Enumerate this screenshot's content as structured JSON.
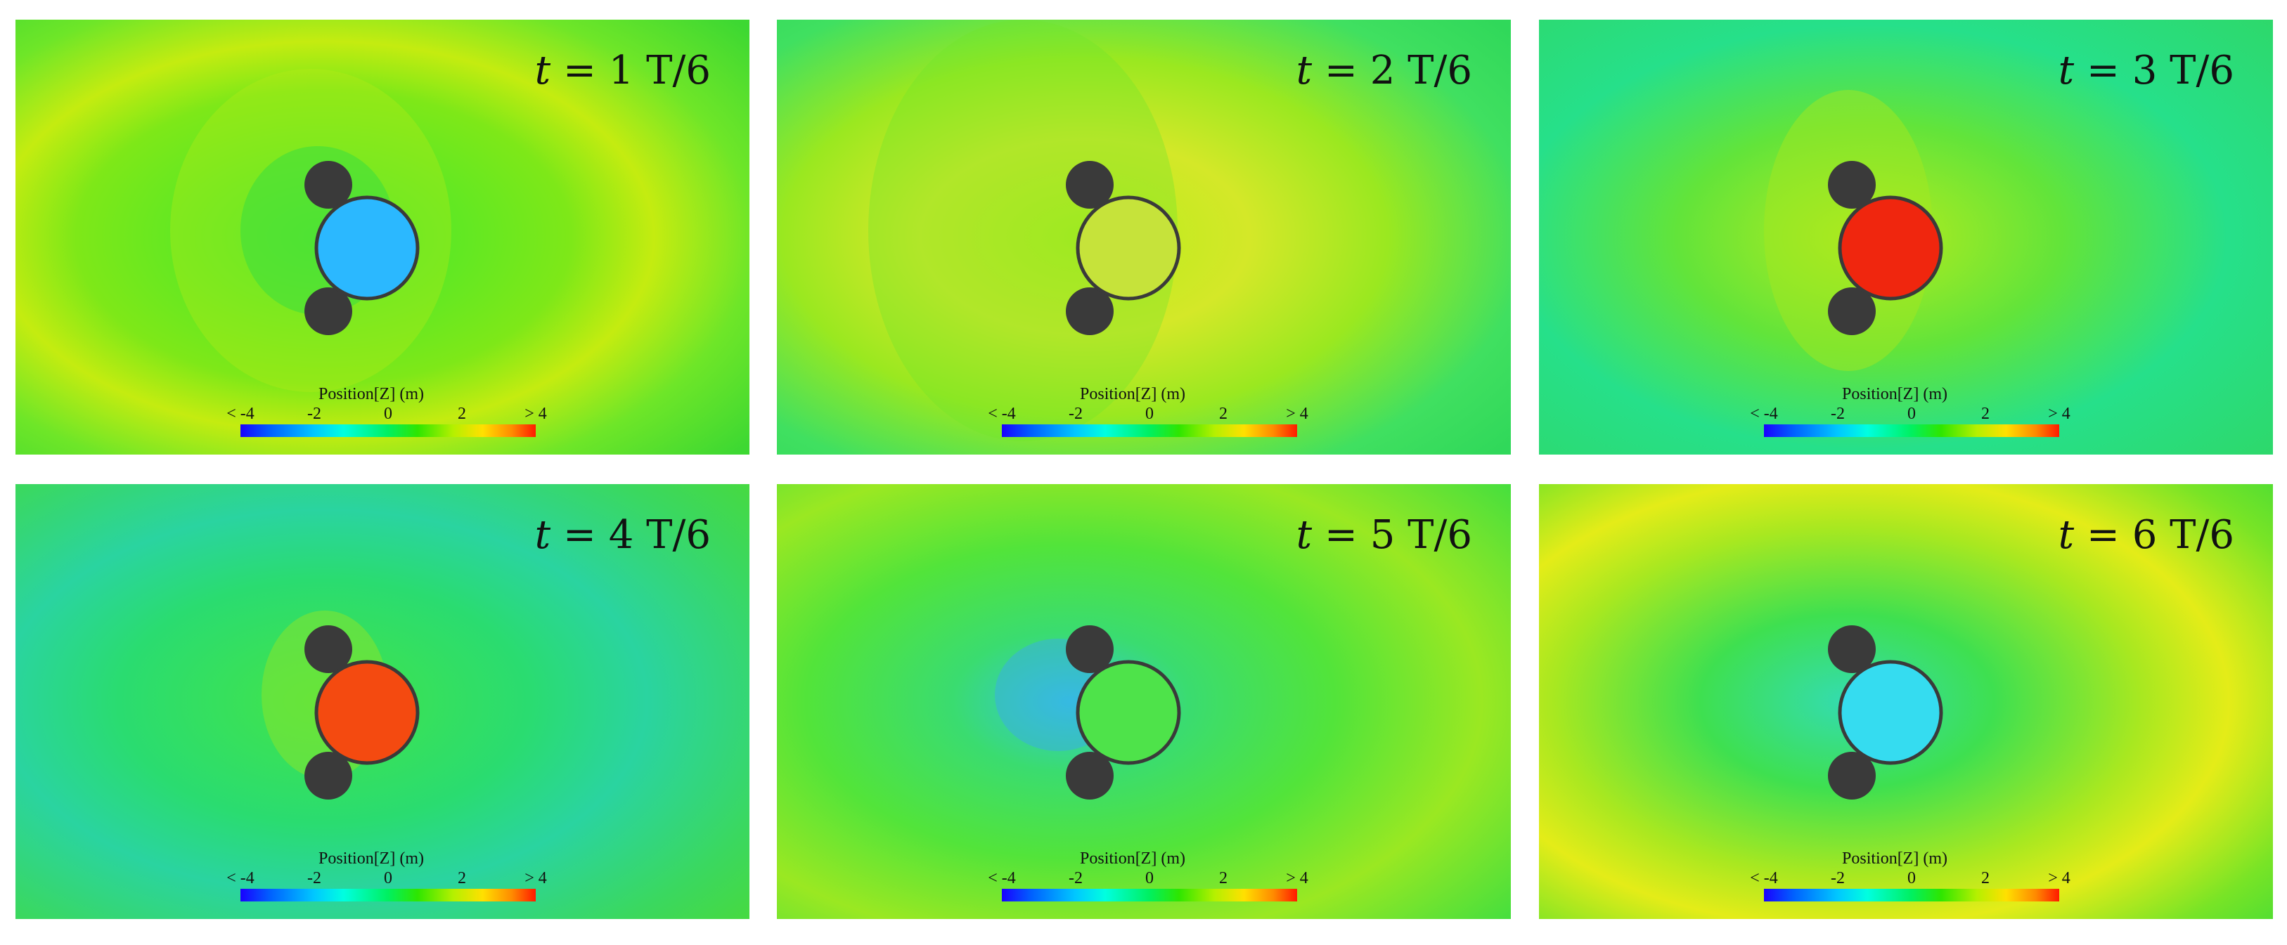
{
  "figure": {
    "panels": [
      {
        "time_prefix": "t",
        "time_value": "= 1 T/6",
        "buoy_color": "#2bb8ff",
        "colorbar": {
          "title": "Position[Z] (m)",
          "ticks": [
            "< -4",
            "-2",
            "0",
            "2",
            "> 4"
          ]
        }
      },
      {
        "time_prefix": "t",
        "time_value": "= 2 T/6",
        "buoy_color": "#c6e33a",
        "colorbar": {
          "title": "Position[Z] (m)",
          "ticks": [
            "< -4",
            "-2",
            "0",
            "2",
            "> 4"
          ]
        }
      },
      {
        "time_prefix": "t",
        "time_value": "= 3 T/6",
        "buoy_color": "#f0260e",
        "colorbar": {
          "title": "Position[Z] (m)",
          "ticks": [
            "< -4",
            "-2",
            "0",
            "2",
            "> 4"
          ]
        }
      },
      {
        "time_prefix": "t",
        "time_value": "= 4 T/6",
        "buoy_color": "#f44a10",
        "colorbar": {
          "title": "Position[Z] (m)",
          "ticks": [
            "< -4",
            "-2",
            "0",
            "2",
            "> 4"
          ]
        }
      },
      {
        "time_prefix": "t",
        "time_value": "= 5 T/6",
        "buoy_color": "#4ee34a",
        "colorbar": {
          "title": "Position[Z] (m)",
          "ticks": [
            "< -4",
            "-2",
            "0",
            "2",
            "> 4"
          ]
        }
      },
      {
        "time_prefix": "t",
        "time_value": "= 6 T/6",
        "buoy_color": "#35dcf0",
        "colorbar": {
          "title": "Position[Z] (m)",
          "ticks": [
            "< -4",
            "-2",
            "0",
            "2",
            "> 4"
          ]
        }
      }
    ],
    "colormap": [
      "#1a00ff",
      "#00c8ff",
      "#00f060",
      "#b4f000",
      "#ff1a00"
    ],
    "cylinder_color": "#3a3a3a"
  }
}
